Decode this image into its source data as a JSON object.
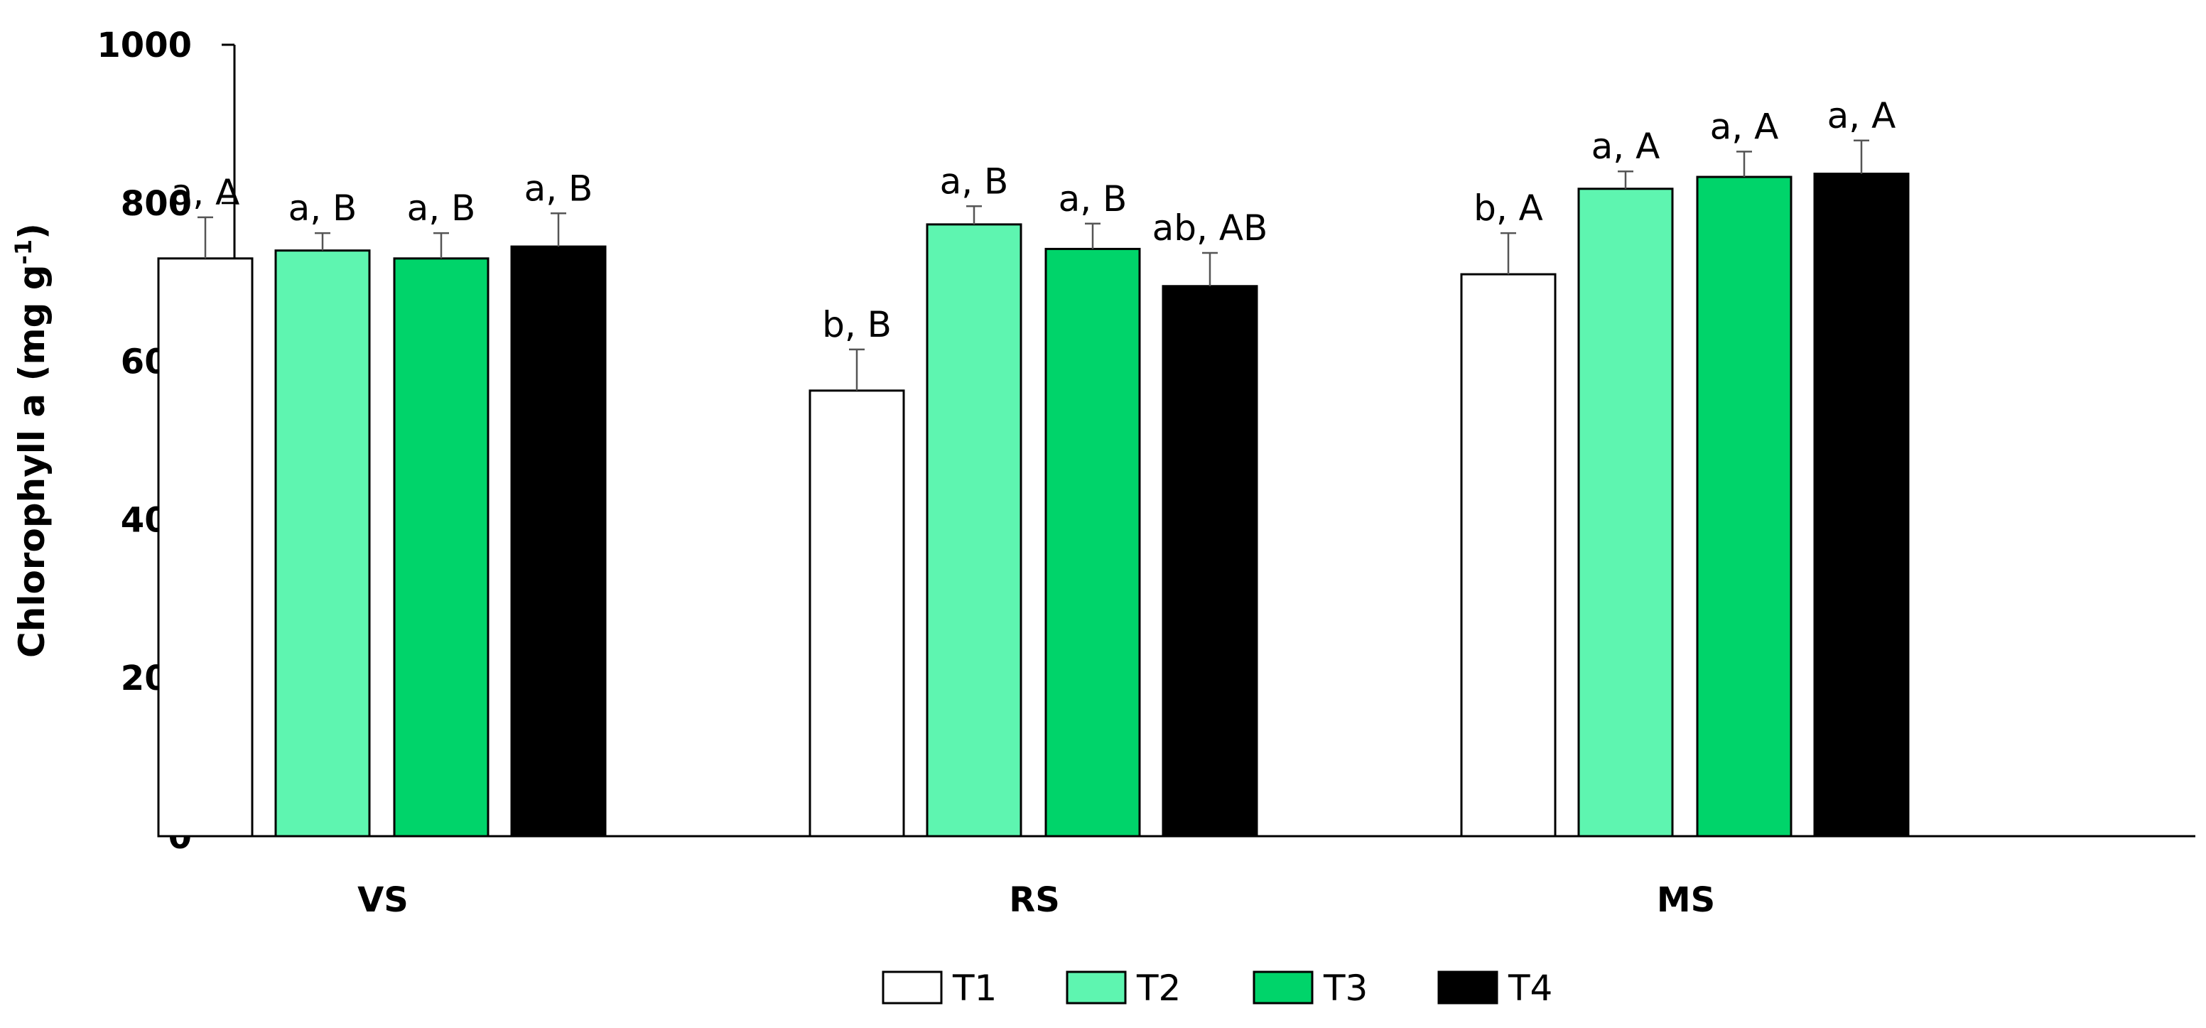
{
  "chart_data": {
    "type": "bar",
    "title": "",
    "xlabel": "",
    "ylabel_main": "Chlorophyll a (mg g",
    "ylabel_sup": "-1",
    "ylabel_close": ")",
    "ylim": [
      0,
      1000
    ],
    "yticks": [
      "0",
      "200",
      "400",
      "600",
      "800",
      "1000"
    ],
    "categories": [
      "VS",
      "RS",
      "MS"
    ],
    "series": [
      {
        "name": "T1",
        "color": "#ffffff",
        "values": [
          730,
          563,
          710
        ],
        "errors": [
          52,
          52,
          52
        ],
        "labels": [
          "a, A",
          "b, B",
          "b, A"
        ]
      },
      {
        "name": "T2",
        "color": "#5ef5b0",
        "values": [
          740,
          773,
          818
        ],
        "errors": [
          22,
          23,
          22
        ],
        "labels": [
          "a, B",
          "a, B",
          "a, A"
        ]
      },
      {
        "name": "T3",
        "color": "#00d46a",
        "values": [
          730,
          742,
          833
        ],
        "errors": [
          32,
          32,
          32
        ],
        "labels": [
          "a, B",
          "a, B",
          "a, A"
        ]
      },
      {
        "name": "T4",
        "color": "#000000",
        "values": [
          745,
          695,
          837
        ],
        "errors": [
          42,
          42,
          42
        ],
        "labels": [
          "a, B",
          "ab, AB",
          "a, A"
        ]
      }
    ],
    "legend_position": "bottom-center",
    "grid": false
  }
}
